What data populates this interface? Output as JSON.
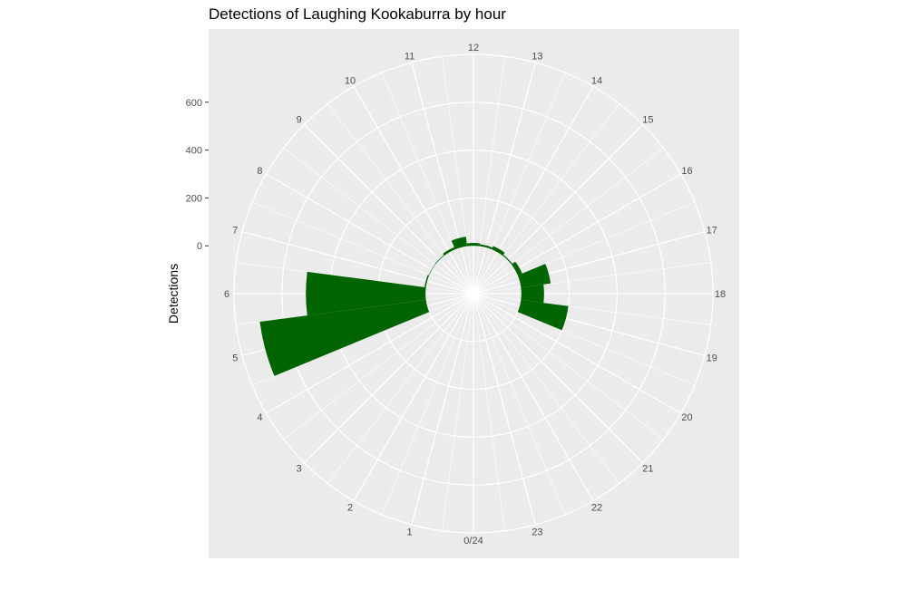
{
  "chart_data": {
    "type": "bar",
    "coord": "polar",
    "title": "Detections of Laughing Kookaburra by hour",
    "xlabel": "",
    "ylabel": "Detections",
    "hour_labels": [
      "0/24",
      "1",
      "2",
      "3",
      "4",
      "5",
      "6",
      "7",
      "8",
      "9",
      "10",
      "11",
      "12",
      "13",
      "14",
      "15",
      "16",
      "17",
      "18",
      "19",
      "20",
      "21",
      "22",
      "23"
    ],
    "y_ticks": [
      0,
      200,
      400,
      600
    ],
    "y_tick_labels": [
      "0",
      "200",
      "400",
      "600"
    ],
    "ylim": [
      -200,
      800
    ],
    "bin_width_hours": 1,
    "categories": [
      "5",
      "6",
      "7",
      "8",
      "9",
      "10",
      "11",
      "12",
      "13",
      "14",
      "15",
      "16",
      "17",
      "18",
      "19"
    ],
    "values": [
      700,
      500,
      6,
      2,
      3,
      10,
      40,
      12,
      8,
      15,
      5,
      20,
      125,
      95,
      200
    ],
    "bar_color": "#006400",
    "panel_background": "#ebebeb",
    "grid_color": "#ffffff",
    "grid": true,
    "legend": "none"
  }
}
